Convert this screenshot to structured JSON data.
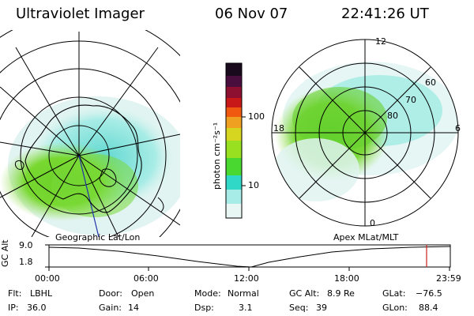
{
  "header": {
    "instrument": "Ultraviolet Imager",
    "date": "06 Nov 07",
    "time": "22:41:26 UT"
  },
  "colorbar": {
    "label": "photon cm⁻²s⁻¹",
    "ticks": [
      "100",
      "10"
    ],
    "colors": [
      "#1a0a1e",
      "#3a0d3a",
      "#6a1040",
      "#9a1020",
      "#d41818",
      "#f06010",
      "#f0a020",
      "#d8d820",
      "#98e020",
      "#40d830",
      "#30d8c8",
      "#a8ece8",
      "#e8f6f4"
    ]
  },
  "left_panel": {
    "label": "Geographic Lat/Lon"
  },
  "right_panel": {
    "label": "Apex MLat/MLT",
    "mlt_labels": {
      "top": "12",
      "left": "18",
      "right": "6",
      "bottom": "0"
    },
    "lat_labels": [
      "60",
      "70",
      "80"
    ]
  },
  "timeline": {
    "axis_label": "GC Alt",
    "y_ticks": [
      "9.0",
      "1.8"
    ],
    "x_ticks": [
      "00:00",
      "06:00",
      "12:00",
      "18:00",
      "23:59"
    ],
    "marker_color": "#cc2222"
  },
  "info": {
    "flt_label": "Flt:",
    "flt_value": "LBHL",
    "ip_label": "IP:",
    "ip_value": "36.0",
    "door_label": "Door:",
    "door_value": "Open",
    "gain_label": "Gain:",
    "gain_value": "14",
    "mode_label": "Mode:",
    "mode_value": "Normal",
    "dsp_label": "Dsp:",
    "dsp_value": "3.1",
    "gcalt_label": "GC Alt:",
    "gcalt_value": "8.9 Re",
    "seq_label": "Seq:",
    "seq_value": "39",
    "glat_label": "GLat:",
    "glat_value": "−76.5",
    "glon_label": "GLon:",
    "glon_value": "88.4"
  }
}
